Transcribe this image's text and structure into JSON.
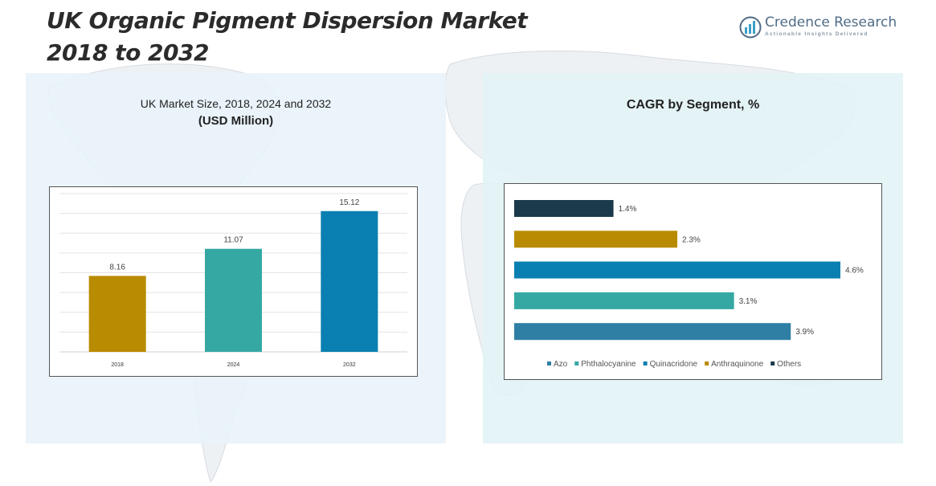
{
  "header": {
    "title_line1": "UK Organic Pigment Dispersion Market",
    "title_line2": "2018 to 2032"
  },
  "logo": {
    "name": "Credence Research",
    "tagline": "Actionable Insights Delivered",
    "icon": "bar-chart-logo-icon"
  },
  "left_panel": {
    "title": "UK Market Size, 2018, 2024 and 2032",
    "subtitle": "(USD Million)"
  },
  "right_panel": {
    "title": "CAGR by Segment, %"
  },
  "colors": {
    "gold": "#b98b00",
    "teal": "#35a8a3",
    "blue": "#0a7fb1",
    "navy": "#1b3a4b",
    "steel": "#2f7fa5"
  },
  "chart_data": [
    {
      "type": "bar",
      "categories": [
        "2018",
        "2024",
        "2032"
      ],
      "values": [
        8.16,
        11.07,
        15.12
      ],
      "value_labels": [
        "8.16",
        "11.07",
        "15.12"
      ],
      "colors": [
        "#b98b00",
        "#35a8a3",
        "#0a7fb1"
      ],
      "title": "UK Market Size, 2018, 2024 and 2032",
      "ylabel": "(USD Million)",
      "ylim": [
        0,
        17
      ],
      "grid": true
    },
    {
      "type": "bar",
      "orientation": "horizontal",
      "categories": [
        "Others",
        "Anthraquinone",
        "Quinacridone",
        "Phthalocyanine",
        "Azo"
      ],
      "values": [
        1.4,
        2.3,
        4.6,
        3.1,
        3.9
      ],
      "value_labels": [
        "1.4%",
        "2.3%",
        "4.6%",
        "3.1%",
        "3.9%"
      ],
      "colors": [
        "#1b3a4b",
        "#b98b00",
        "#0a7fb1",
        "#35a8a3",
        "#2f7fa5"
      ],
      "title": "CAGR by Segment, %",
      "xlim": [
        0,
        4.6
      ],
      "legend_position": "bottom",
      "legend": [
        {
          "name": "Azo",
          "color": "#2f7fa5"
        },
        {
          "name": "Phthalocyanine",
          "color": "#35a8a3"
        },
        {
          "name": "Quinacridone",
          "color": "#0a7fb1"
        },
        {
          "name": "Anthraquinone",
          "color": "#b98b00"
        },
        {
          "name": "Others",
          "color": "#1b3a4b"
        }
      ]
    }
  ]
}
